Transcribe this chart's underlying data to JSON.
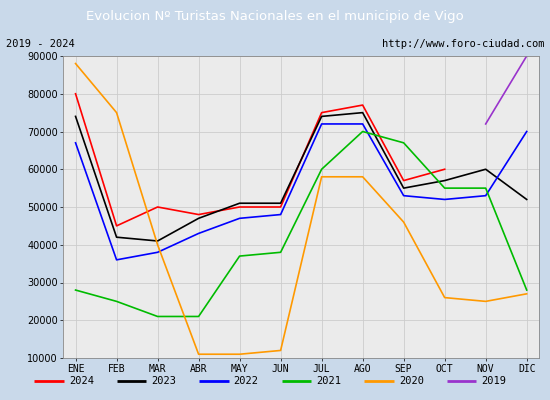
{
  "title": "Evolucion Nº Turistas Nacionales en el municipio de Vigo",
  "subtitle_left": "2019 - 2024",
  "subtitle_right": "http://www.foro-ciudad.com",
  "x_labels": [
    "ENE",
    "FEB",
    "MAR",
    "ABR",
    "MAY",
    "JUN",
    "JUL",
    "AGO",
    "SEP",
    "OCT",
    "NOV",
    "DIC"
  ],
  "ylim": [
    10000,
    90000
  ],
  "yticks": [
    10000,
    20000,
    30000,
    40000,
    50000,
    60000,
    70000,
    80000,
    90000
  ],
  "series": {
    "2024": {
      "color": "#ff0000",
      "data": [
        80000,
        45000,
        50000,
        48000,
        50000,
        50000,
        75000,
        77000,
        57000,
        60000,
        null,
        null
      ]
    },
    "2023": {
      "color": "#000000",
      "data": [
        74000,
        42000,
        41000,
        47000,
        51000,
        51000,
        74000,
        75000,
        55000,
        57000,
        60000,
        52000
      ]
    },
    "2022": {
      "color": "#0000ff",
      "data": [
        67000,
        36000,
        38000,
        43000,
        47000,
        48000,
        72000,
        72000,
        53000,
        52000,
        53000,
        70000
      ]
    },
    "2021": {
      "color": "#00bb00",
      "data": [
        28000,
        25000,
        21000,
        21000,
        37000,
        38000,
        60000,
        70000,
        67000,
        55000,
        55000,
        28000
      ]
    },
    "2020": {
      "color": "#ff9900",
      "data": [
        88000,
        75000,
        40000,
        11000,
        11000,
        12000,
        58000,
        58000,
        46000,
        26000,
        25000,
        27000
      ]
    },
    "2019": {
      "color": "#9933cc",
      "data": [
        null,
        null,
        null,
        null,
        null,
        null,
        null,
        null,
        null,
        null,
        72000,
        90000
      ]
    }
  },
  "background_color": "#c9d9ea",
  "plot_background": "#ebebeb",
  "title_bg": "#4472c4",
  "title_color": "#ffffff",
  "subtitle_bg": "#ffffff",
  "subtitle_color": "#000000",
  "grid_color": "#cccccc",
  "legend_order": [
    "2024",
    "2023",
    "2022",
    "2021",
    "2020",
    "2019"
  ]
}
